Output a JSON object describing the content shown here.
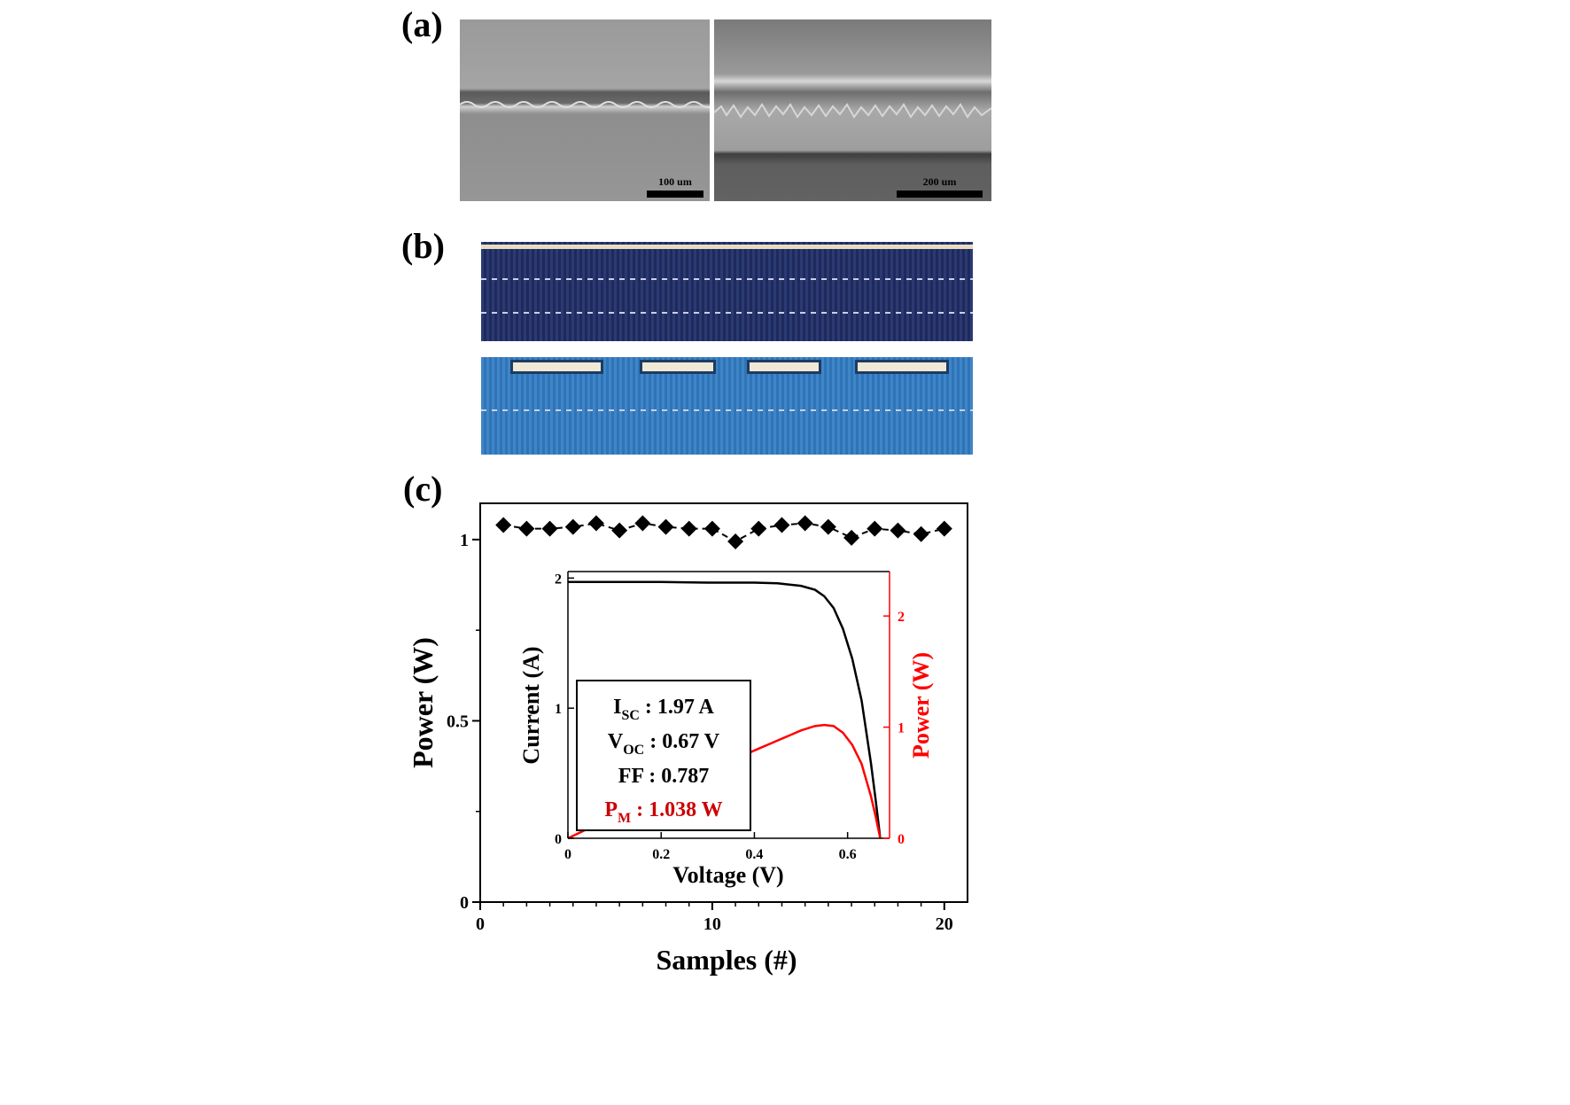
{
  "panels": {
    "a": "(a)",
    "b": "(b)",
    "c": "(c)"
  },
  "sem": {
    "scale_left": "100 um",
    "scale_right": "200 um"
  },
  "chart_data": [
    {
      "type": "scatter",
      "xlabel": "Samples (#)",
      "ylabel": "Power (W)",
      "xlim": [
        0,
        21
      ],
      "ylim": [
        0,
        1.1
      ],
      "xticks": [
        0,
        10,
        20
      ],
      "yticks": [
        0,
        0.5,
        1
      ],
      "ytick_labels": [
        "0",
        "0.5",
        "1"
      ],
      "marker": "diamond",
      "line_style": "dashed",
      "x": [
        1,
        2,
        3,
        4,
        5,
        6,
        7,
        8,
        9,
        10,
        11,
        12,
        13,
        14,
        15,
        16,
        17,
        18,
        19,
        20
      ],
      "values": [
        1.04,
        1.03,
        1.03,
        1.035,
        1.045,
        1.025,
        1.045,
        1.035,
        1.03,
        1.03,
        0.995,
        1.03,
        1.04,
        1.045,
        1.035,
        1.005,
        1.03,
        1.025,
        1.015,
        1.03
      ]
    },
    {
      "type": "line",
      "xlabel": "Voltage (V)",
      "ylabel": "Current (A)",
      "ylabel2": "Power (W)",
      "xlim": [
        0,
        0.69
      ],
      "ylim": [
        0,
        2.05
      ],
      "y2lim": [
        0,
        2.4
      ],
      "xticks": [
        0,
        0.2,
        0.4,
        0.6
      ],
      "yticks": [
        0,
        1,
        2
      ],
      "y2ticks": [
        0,
        1,
        2
      ],
      "series": [
        {
          "name": "Current",
          "axis": "left",
          "color": "#000000",
          "x": [
            0,
            0.1,
            0.2,
            0.3,
            0.4,
            0.45,
            0.5,
            0.53,
            0.55,
            0.57,
            0.59,
            0.61,
            0.63,
            0.65,
            0.66,
            0.67
          ],
          "y": [
            1.97,
            1.97,
            1.97,
            1.965,
            1.965,
            1.96,
            1.94,
            1.91,
            1.86,
            1.77,
            1.61,
            1.38,
            1.06,
            0.58,
            0.3,
            0
          ]
        },
        {
          "name": "Power",
          "axis": "right",
          "color": "#ff0000",
          "x": [
            0,
            0.1,
            0.2,
            0.3,
            0.4,
            0.45,
            0.5,
            0.53,
            0.55,
            0.57,
            0.59,
            0.61,
            0.63,
            0.65,
            0.66,
            0.67
          ],
          "y": [
            0,
            0.2,
            0.39,
            0.59,
            0.79,
            0.88,
            0.97,
            1.01,
            1.02,
            1.01,
            0.95,
            0.84,
            0.67,
            0.38,
            0.2,
            0
          ]
        }
      ]
    }
  ],
  "inset_box": {
    "isc_main": "I",
    "isc_sub": "SC",
    "isc_val": " : 1.97 A",
    "voc_main": "V",
    "voc_sub": "OC",
    "voc_val": " : 0.67 V",
    "ff": "FF : 0.787",
    "pm_main": "P",
    "pm_sub": "M",
    "pm_val": " : 1.038 W",
    "pm_color": "#cc0000"
  }
}
